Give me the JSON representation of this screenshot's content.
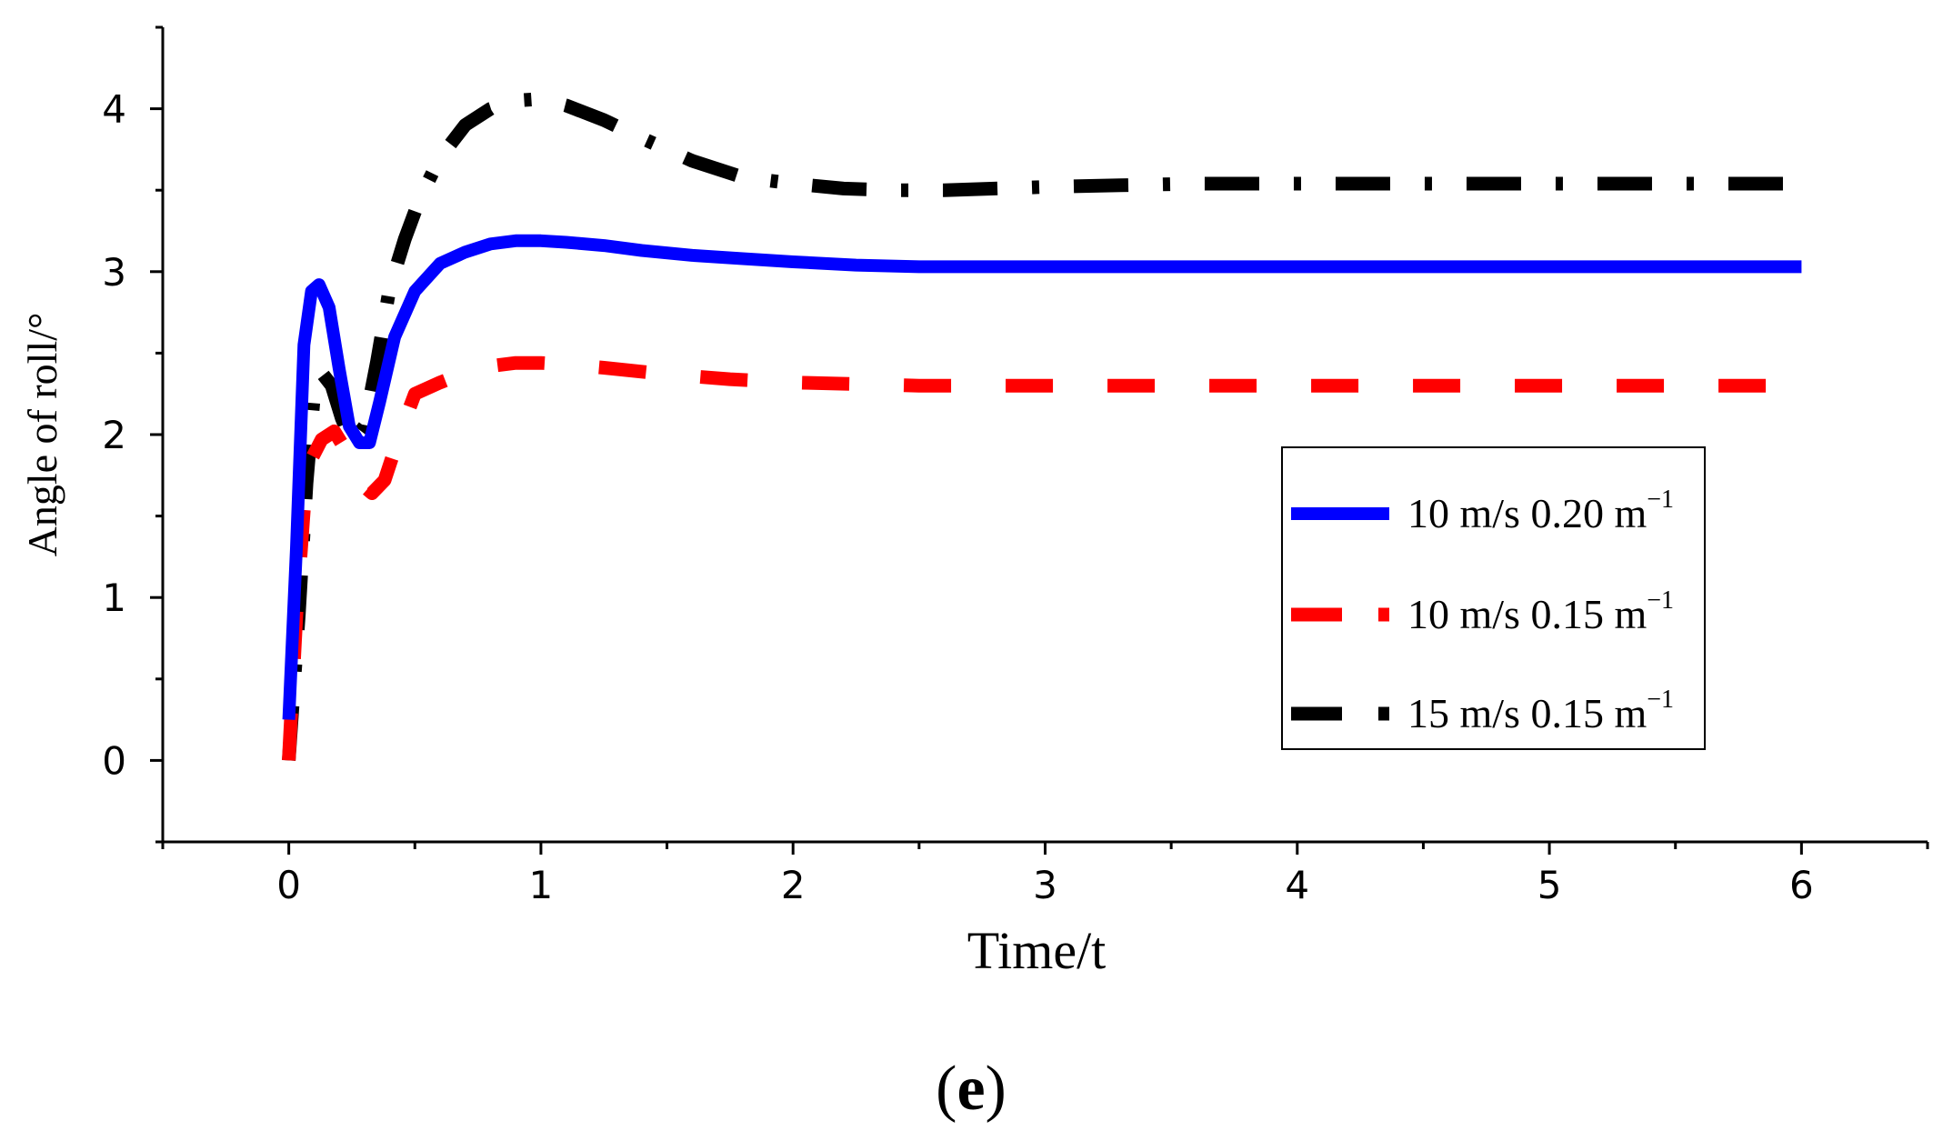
{
  "chart_data": {
    "type": "line",
    "title": "",
    "xlabel": "Time/t",
    "ylabel": "Angle of roll/°",
    "xlim": [
      -0.5,
      6.5
    ],
    "ylim": [
      -0.5,
      4.5
    ],
    "xticks": [
      0,
      1,
      2,
      3,
      4,
      5,
      6
    ],
    "yticks": [
      0,
      1,
      2,
      3,
      4
    ],
    "grid": false,
    "legend_position": "center-right",
    "panel_label": "e",
    "series": [
      {
        "name": "10 m/s 0.20 m",
        "name_superscript": "−1",
        "color": "#0000ff",
        "style": "solid",
        "x": [
          0,
          0.03,
          0.06,
          0.09,
          0.12,
          0.16,
          0.2,
          0.24,
          0.28,
          0.32,
          0.36,
          0.42,
          0.5,
          0.6,
          0.7,
          0.8,
          0.9,
          1.0,
          1.1,
          1.25,
          1.4,
          1.6,
          1.8,
          2.0,
          2.25,
          2.5,
          2.8,
          3.0,
          3.5,
          4.0,
          4.5,
          5.0,
          5.5,
          6.0
        ],
        "y": [
          0.25,
          1.3,
          2.55,
          2.88,
          2.92,
          2.78,
          2.4,
          2.05,
          1.95,
          1.95,
          2.2,
          2.6,
          2.88,
          3.05,
          3.12,
          3.17,
          3.19,
          3.19,
          3.18,
          3.16,
          3.13,
          3.1,
          3.08,
          3.06,
          3.04,
          3.03,
          3.03,
          3.03,
          3.03,
          3.03,
          3.03,
          3.03,
          3.03,
          3.03
        ]
      },
      {
        "name": "10 m/s 0.15 m",
        "name_superscript": "−1",
        "color": "#ff0000",
        "style": "dashed",
        "x": [
          0,
          0.03,
          0.06,
          0.09,
          0.13,
          0.18,
          0.22,
          0.27,
          0.33,
          0.38,
          0.44,
          0.5,
          0.6,
          0.7,
          0.8,
          0.9,
          1.0,
          1.1,
          1.25,
          1.5,
          1.75,
          2.0,
          2.25,
          2.5,
          3.0,
          3.5,
          4.0,
          4.5,
          5.0,
          5.5,
          6.0
        ],
        "y": [
          0.0,
          0.9,
          1.55,
          1.85,
          1.97,
          2.02,
          1.92,
          1.72,
          1.64,
          1.72,
          2.0,
          2.25,
          2.32,
          2.38,
          2.42,
          2.44,
          2.44,
          2.43,
          2.41,
          2.37,
          2.34,
          2.32,
          2.31,
          2.3,
          2.3,
          2.3,
          2.3,
          2.3,
          2.3,
          2.3,
          2.3
        ]
      },
      {
        "name": "15 m/s 0.15 m",
        "name_superscript": "−1",
        "color": "#000000",
        "style": "dash-dot",
        "x": [
          0,
          0.04,
          0.07,
          0.1,
          0.13,
          0.17,
          0.21,
          0.25,
          0.3,
          0.35,
          0.4,
          0.46,
          0.52,
          0.6,
          0.7,
          0.8,
          0.9,
          1.0,
          1.1,
          1.25,
          1.4,
          1.6,
          1.8,
          2.0,
          2.2,
          2.4,
          2.6,
          2.8,
          3.0,
          3.3,
          3.6,
          4.0,
          4.5,
          5.0,
          5.5,
          6.0
        ],
        "y": [
          0.0,
          0.9,
          1.7,
          2.25,
          2.38,
          2.3,
          2.1,
          1.95,
          2.05,
          2.45,
          2.9,
          3.2,
          3.45,
          3.7,
          3.9,
          4.0,
          4.05,
          4.06,
          4.02,
          3.93,
          3.82,
          3.68,
          3.58,
          3.54,
          3.51,
          3.5,
          3.5,
          3.51,
          3.52,
          3.53,
          3.54,
          3.54,
          3.54,
          3.54,
          3.54,
          3.54
        ]
      }
    ]
  }
}
